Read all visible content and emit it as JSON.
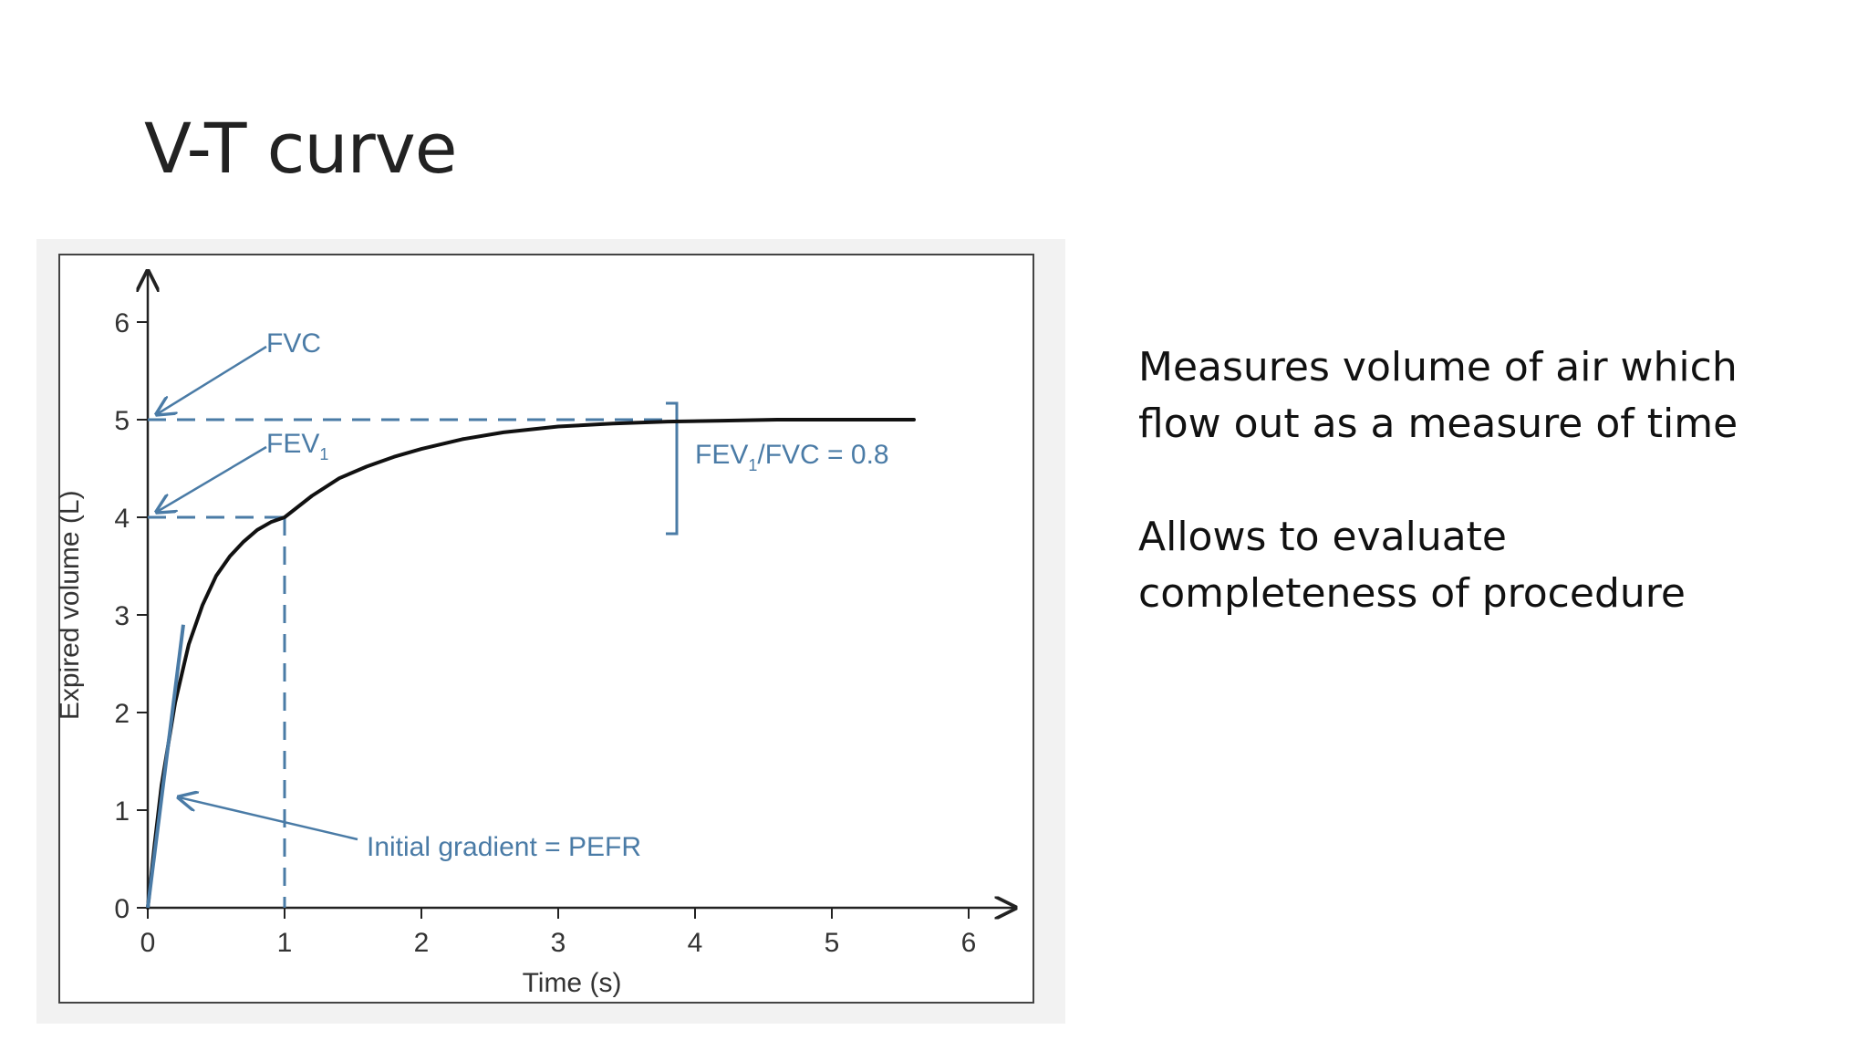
{
  "slide": {
    "title": "V-T curve",
    "bullets": [
      "Measures volume of air which flow out as a measure of time",
      "Allows to evaluate completeness of procedure"
    ]
  },
  "colors": {
    "curve": "#111111",
    "annotation": "#4a7ba6",
    "axis": "#222222"
  },
  "chart_data": {
    "type": "line",
    "xlabel": "Time (s)",
    "ylabel": "Expired volume (L)",
    "xlim": [
      0,
      6.3
    ],
    "ylim": [
      0,
      6.5
    ],
    "x_ticks": [
      "0",
      "1",
      "2",
      "3",
      "4",
      "5",
      "6"
    ],
    "y_ticks": [
      "0",
      "1",
      "2",
      "3",
      "4",
      "5",
      "6"
    ],
    "grid": false,
    "series": [
      {
        "x": [
          0,
          0.05,
          0.1,
          0.2,
          0.3,
          0.4,
          0.5,
          0.6,
          0.7,
          0.8,
          0.9,
          1.0,
          1.2,
          1.4,
          1.6,
          1.8,
          2.0,
          2.3,
          2.6,
          3.0,
          3.4,
          3.8,
          4.2,
          4.6,
          5.0,
          5.3,
          5.6
        ],
        "y": [
          0,
          0.65,
          1.25,
          2.1,
          2.7,
          3.1,
          3.4,
          3.6,
          3.75,
          3.87,
          3.95,
          4.0,
          4.22,
          4.4,
          4.52,
          4.62,
          4.7,
          4.8,
          4.87,
          4.93,
          4.96,
          4.98,
          4.99,
          5.0,
          5.0,
          5.0,
          5.0
        ]
      }
    ],
    "annotations": {
      "fvc": {
        "text": "FVC",
        "value": 5
      },
      "fev1": {
        "text": "FEV",
        "sub": "1",
        "value": 4,
        "time": 1
      },
      "ratio": {
        "pre": "FEV",
        "sub": "1",
        "post": "/FVC = 0.8",
        "x_at": 3.8
      },
      "gradient": {
        "text": "Initial gradient = PEFR",
        "line_x": [
          0,
          0.26
        ],
        "line_y": [
          0,
          2.9
        ],
        "arrow_to": [
          0.2,
          1.15
        ]
      }
    }
  }
}
